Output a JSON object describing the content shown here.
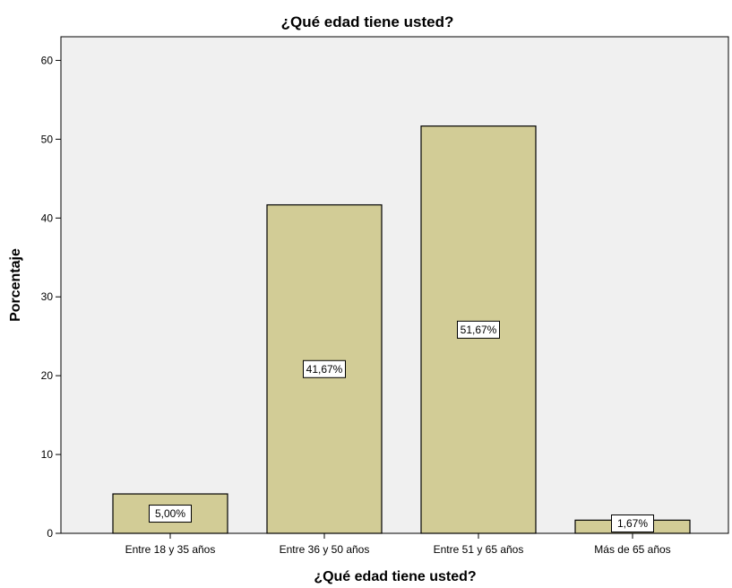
{
  "chart_data": {
    "type": "bar",
    "title": "¿Qué edad tiene usted?",
    "xlabel": "¿Qué edad tiene usted?",
    "ylabel": "Porcentaje",
    "categories": [
      "Entre 18 y 35 años",
      "Entre 36 y 50 años",
      "Entre 51 y 65 años",
      "Más de 65 años"
    ],
    "values": [
      5.0,
      41.67,
      51.67,
      1.67
    ],
    "data_labels": [
      "5,00%",
      "41,67%",
      "51,67%",
      "1,67%"
    ],
    "yticks": [
      "0",
      "10",
      "20",
      "30",
      "40",
      "50",
      "60"
    ],
    "ylim": [
      0,
      63
    ],
    "grid": false,
    "legend": "none",
    "bar_color": "#d2cc96",
    "plot_background": "#f0f0f0"
  }
}
